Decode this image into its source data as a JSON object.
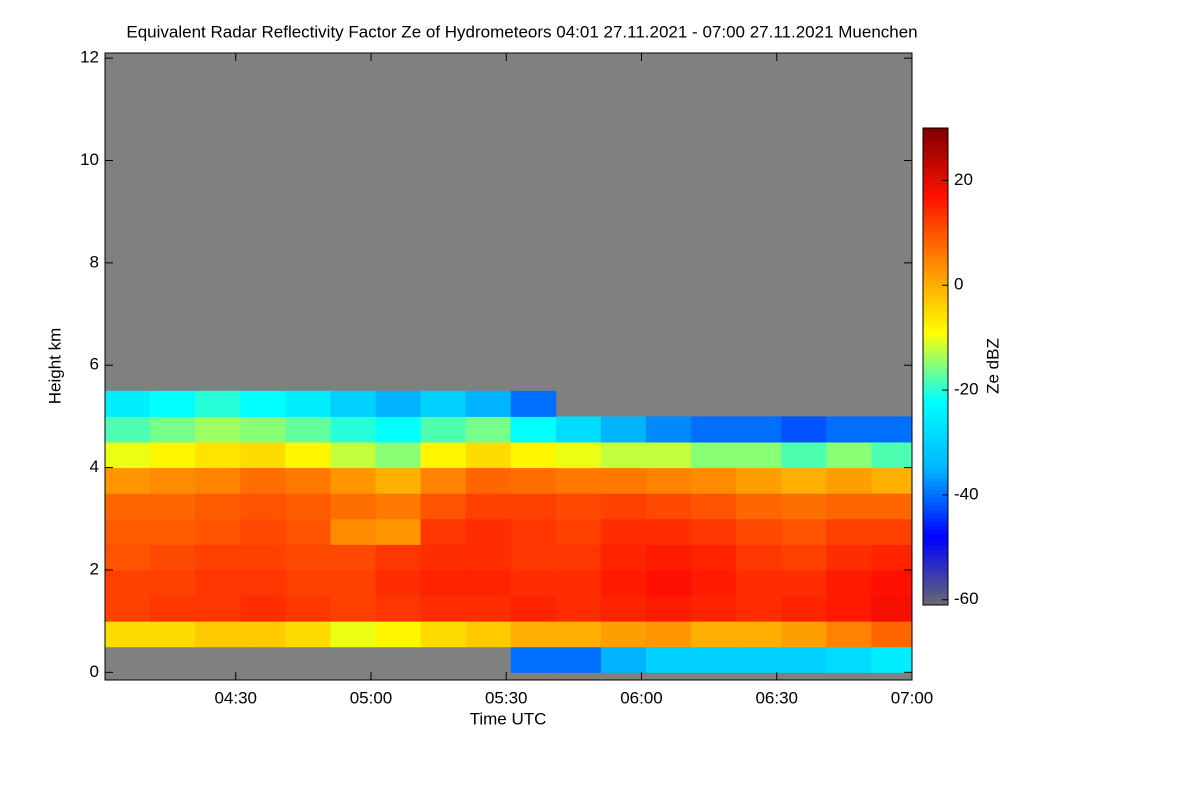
{
  "chart_data": {
    "type": "heatmap",
    "title": "Equivalent Radar Reflectivity Factor Ze of Hydrometeors   04:01 27.11.2021 - 07:00 27.11.2021 Muenchen",
    "x_label": "Time UTC",
    "y_label": "Height km",
    "colorbar_label": "Ze dBZ",
    "xlim": [
      "04:01",
      "07:00"
    ],
    "xticks": [
      "04:30",
      "05:00",
      "05:30",
      "06:00",
      "06:30",
      "07:00"
    ],
    "ylim": [
      -0.15,
      12.1
    ],
    "yticks": [
      0,
      2,
      4,
      6,
      8,
      10,
      12
    ],
    "clim": [
      -61,
      30
    ],
    "cticks": [
      -60,
      -40,
      -20,
      0,
      20
    ],
    "nodata_color": "#808080",
    "colorscale": [
      "#6a6a70",
      "#0000ff",
      "#00b4ff",
      "#00ffff",
      "#ffff00",
      "#ff8c00",
      "#ff1000",
      "#800000"
    ],
    "x": [
      "04:06",
      "04:16",
      "04:26",
      "04:36",
      "04:46",
      "04:56",
      "05:06",
      "05:16",
      "05:26",
      "05:36",
      "05:46",
      "05:56",
      "06:06",
      "06:16",
      "06:26",
      "06:36",
      "06:46",
      "06:56"
    ],
    "y": [
      0.25,
      0.75,
      1.25,
      1.75,
      2.25,
      2.75,
      3.25,
      3.75,
      4.25,
      4.75,
      5.25
    ],
    "z": [
      [
        null,
        null,
        null,
        null,
        null,
        null,
        null,
        null,
        null,
        -40,
        -40,
        -35,
        -30,
        -30,
        -30,
        -30,
        -28,
        -25
      ],
      [
        -5,
        -5,
        -3,
        -3,
        -5,
        -10,
        -8,
        -5,
        -3,
        0,
        0,
        2,
        3,
        0,
        0,
        2,
        5,
        8
      ],
      [
        12,
        13,
        13,
        14,
        13,
        12,
        13,
        14,
        14,
        15,
        14,
        15,
        16,
        15,
        14,
        15,
        16,
        18
      ],
      [
        12,
        12,
        13,
        13,
        12,
        12,
        14,
        15,
        15,
        14,
        14,
        16,
        17,
        16,
        14,
        14,
        16,
        17
      ],
      [
        10,
        11,
        12,
        12,
        11,
        11,
        13,
        14,
        14,
        13,
        13,
        15,
        16,
        15,
        13,
        12,
        14,
        15
      ],
      [
        9,
        9,
        10,
        11,
        10,
        4,
        3,
        13,
        14,
        13,
        12,
        14,
        14,
        13,
        11,
        10,
        12,
        12
      ],
      [
        8,
        8,
        9,
        10,
        9,
        7,
        6,
        10,
        12,
        12,
        11,
        12,
        11,
        10,
        8,
        7,
        8,
        8
      ],
      [
        3,
        4,
        5,
        7,
        6,
        3,
        0,
        5,
        8,
        7,
        6,
        6,
        5,
        4,
        2,
        0,
        2,
        0
      ],
      [
        -10,
        -8,
        -6,
        -5,
        -8,
        -12,
        -15,
        -8,
        -5,
        -8,
        -10,
        -12,
        -12,
        -15,
        -15,
        -18,
        -15,
        -18
      ],
      [
        -18,
        -16,
        -14,
        -15,
        -17,
        -20,
        -22,
        -18,
        -16,
        -22,
        -28,
        -35,
        -38,
        -40,
        -40,
        -42,
        -40,
        -40
      ],
      [
        -25,
        -22,
        -20,
        -22,
        -25,
        -30,
        -35,
        -30,
        -35,
        -40,
        null,
        null,
        null,
        null,
        null,
        null,
        null,
        null
      ]
    ]
  }
}
